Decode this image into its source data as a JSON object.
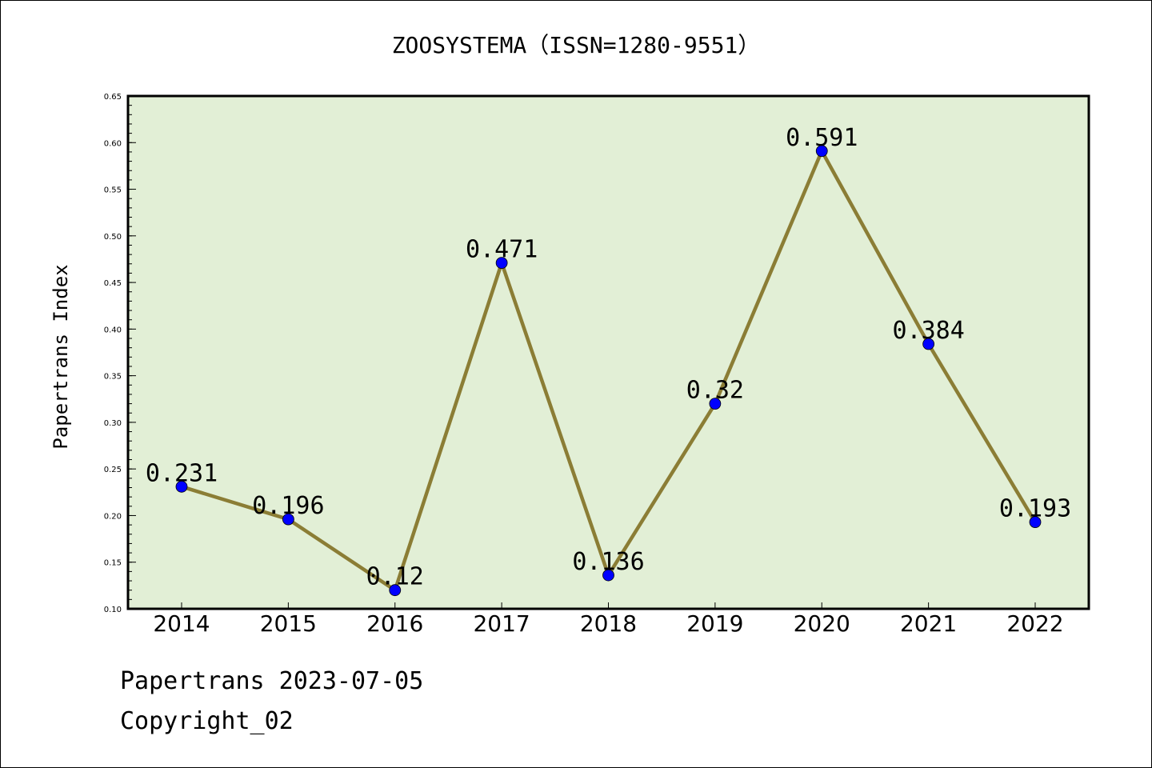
{
  "chart_data": {
    "type": "line",
    "title": "ZOOSYSTEMA（ISSN=1280-9551）",
    "xlabel": "",
    "ylabel": "Papertrans Index",
    "categories": [
      "2014",
      "2015",
      "2016",
      "2017",
      "2018",
      "2019",
      "2020",
      "2021",
      "2022"
    ],
    "series": [
      {
        "values": [
          0.231,
          0.196,
          0.12,
          0.471,
          0.136,
          0.32,
          0.591,
          0.384,
          0.193
        ],
        "data_labels": [
          "0.231",
          "0.196",
          "0.12",
          "0.471",
          "0.136",
          "0.32",
          "0.591",
          "0.384",
          "0.193"
        ]
      }
    ],
    "ylim": [
      0.1,
      0.65
    ],
    "yticks": [
      "0.10",
      "0.15",
      "0.20",
      "0.25",
      "0.30",
      "0.35",
      "0.40",
      "0.45",
      "0.50",
      "0.55",
      "0.60",
      "0.65"
    ],
    "grid": false,
    "legend": "none",
    "colors": {
      "plot_background": "#e2efd6",
      "line": "#8b7d35",
      "marker": "#0000ff"
    }
  },
  "footer": {
    "line1": "Papertrans 2023-07-05",
    "line2": "Copyright_02"
  }
}
